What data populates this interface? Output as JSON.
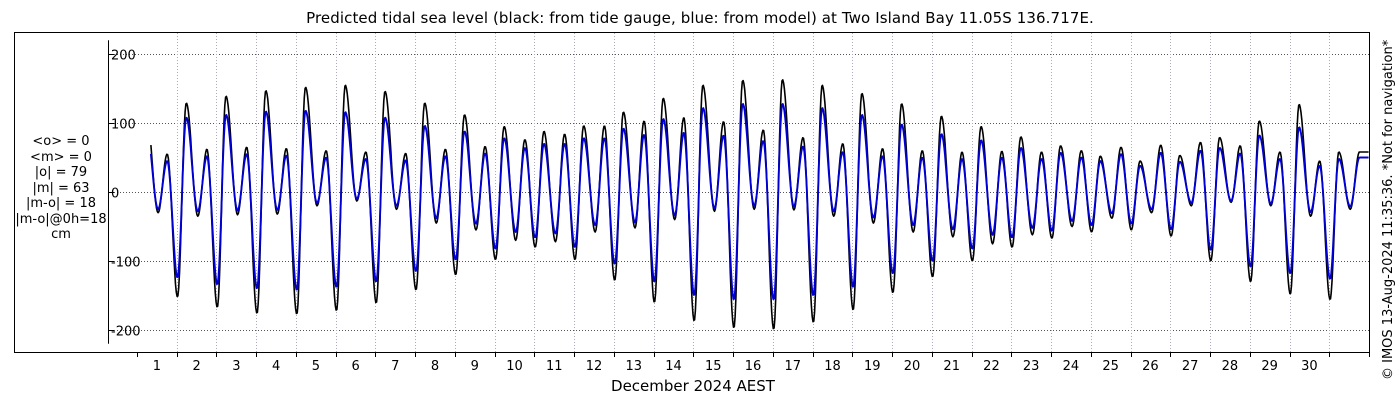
{
  "title": "Predicted tidal sea level (black: from tide gauge, blue: from model) at Two Island Bay 11.05S 136.717E.",
  "stats": [
    "<o> = 0",
    "<m> = 0",
    "|o| = 79",
    "|m| = 63",
    "|m-o| = 18",
    "|m-o|@0h=18",
    "cm"
  ],
  "side_note": "© IMOS 13-Aug-2024 11:35:36. *Not for navigation*",
  "chart_data": {
    "type": "line",
    "title": "Predicted tidal sea level (black: from tide gauge, blue: from model) at Two Island Bay 11.05S 136.717E.",
    "xlabel": "December 2024 AEST",
    "ylabel": "",
    "xlim": [
      0,
      31
    ],
    "ylim": [
      -220,
      220
    ],
    "yticks": [
      -200,
      -100,
      0,
      100,
      200
    ],
    "xticks": [
      "1",
      "2",
      "3",
      "4",
      "5",
      "6",
      "7",
      "8",
      "9",
      "10",
      "11",
      "12",
      "13",
      "14",
      "15",
      "16",
      "17",
      "18",
      "19",
      "20",
      "21",
      "22",
      "23",
      "24",
      "25",
      "26",
      "27",
      "28",
      "29",
      "30"
    ],
    "grid": true,
    "series": [
      {
        "color": "#000000",
        "hw_high": [
          113,
          129,
          139,
          147,
          152,
          155,
          146,
          129,
          112,
          95,
          88,
          96,
          116,
          136,
          155,
          162,
          163,
          155,
          143,
          128,
          110,
          95,
          80,
          67,
          52,
          45,
          53,
          79,
          103,
          127,
          58
        ],
        "hw_low": [
          55,
          62,
          65,
          63,
          60,
          58,
          56,
          62,
          66,
          76,
          84,
          96,
          103,
          108,
          102,
          90,
          79,
          70,
          63,
          60,
          58,
          59,
          58,
          60,
          65,
          68,
          72,
          67,
          58,
          45,
          58
        ],
        "lw_low": [
          -138,
          -152,
          -167,
          -176,
          -177,
          -172,
          -161,
          -142,
          -120,
          -98,
          -80,
          -98,
          -128,
          -160,
          -187,
          -197,
          -199,
          -189,
          -171,
          -146,
          -123,
          -100,
          -80,
          -67,
          -58,
          -55,
          -64,
          -100,
          -130,
          -148,
          -156
        ],
        "lw_high": [
          -30,
          -35,
          -33,
          -32,
          -20,
          -13,
          -25,
          -45,
          -55,
          -70,
          -72,
          -58,
          -52,
          -40,
          -28,
          -25,
          -26,
          -35,
          -45,
          -58,
          -65,
          -75,
          -62,
          -50,
          -38,
          -30,
          -20,
          -15,
          -20,
          -35,
          -25
        ]
      },
      {
        "color": "#0000d0",
        "hw_high": [
          92,
          108,
          112,
          117,
          118,
          116,
          108,
          96,
          88,
          78,
          70,
          78,
          92,
          106,
          122,
          128,
          128,
          122,
          112,
          98,
          84,
          75,
          64,
          57,
          45,
          38,
          44,
          64,
          82,
          94,
          48
        ],
        "hw_low": [
          45,
          52,
          55,
          53,
          50,
          48,
          46,
          52,
          56,
          64,
          70,
          78,
          83,
          86,
          82,
          74,
          66,
          58,
          52,
          50,
          48,
          50,
          48,
          50,
          55,
          57,
          60,
          56,
          48,
          38,
          50
        ],
        "lw_low": [
          -112,
          -124,
          -134,
          -140,
          -142,
          -138,
          -130,
          -115,
          -98,
          -82,
          -66,
          -80,
          -104,
          -130,
          -150,
          -156,
          -156,
          -150,
          -138,
          -118,
          -100,
          -82,
          -66,
          -56,
          -48,
          -46,
          -54,
          -84,
          -108,
          -118,
          -126
        ],
        "lw_high": [
          -25,
          -28,
          -27,
          -26,
          -16,
          -10,
          -20,
          -38,
          -46,
          -58,
          -60,
          -48,
          -44,
          -34,
          -24,
          -20,
          -21,
          -28,
          -37,
          -48,
          -54,
          -62,
          -52,
          -42,
          -31,
          -25,
          -16,
          -13,
          -17,
          -29,
          -21
        ]
      }
    ]
  }
}
